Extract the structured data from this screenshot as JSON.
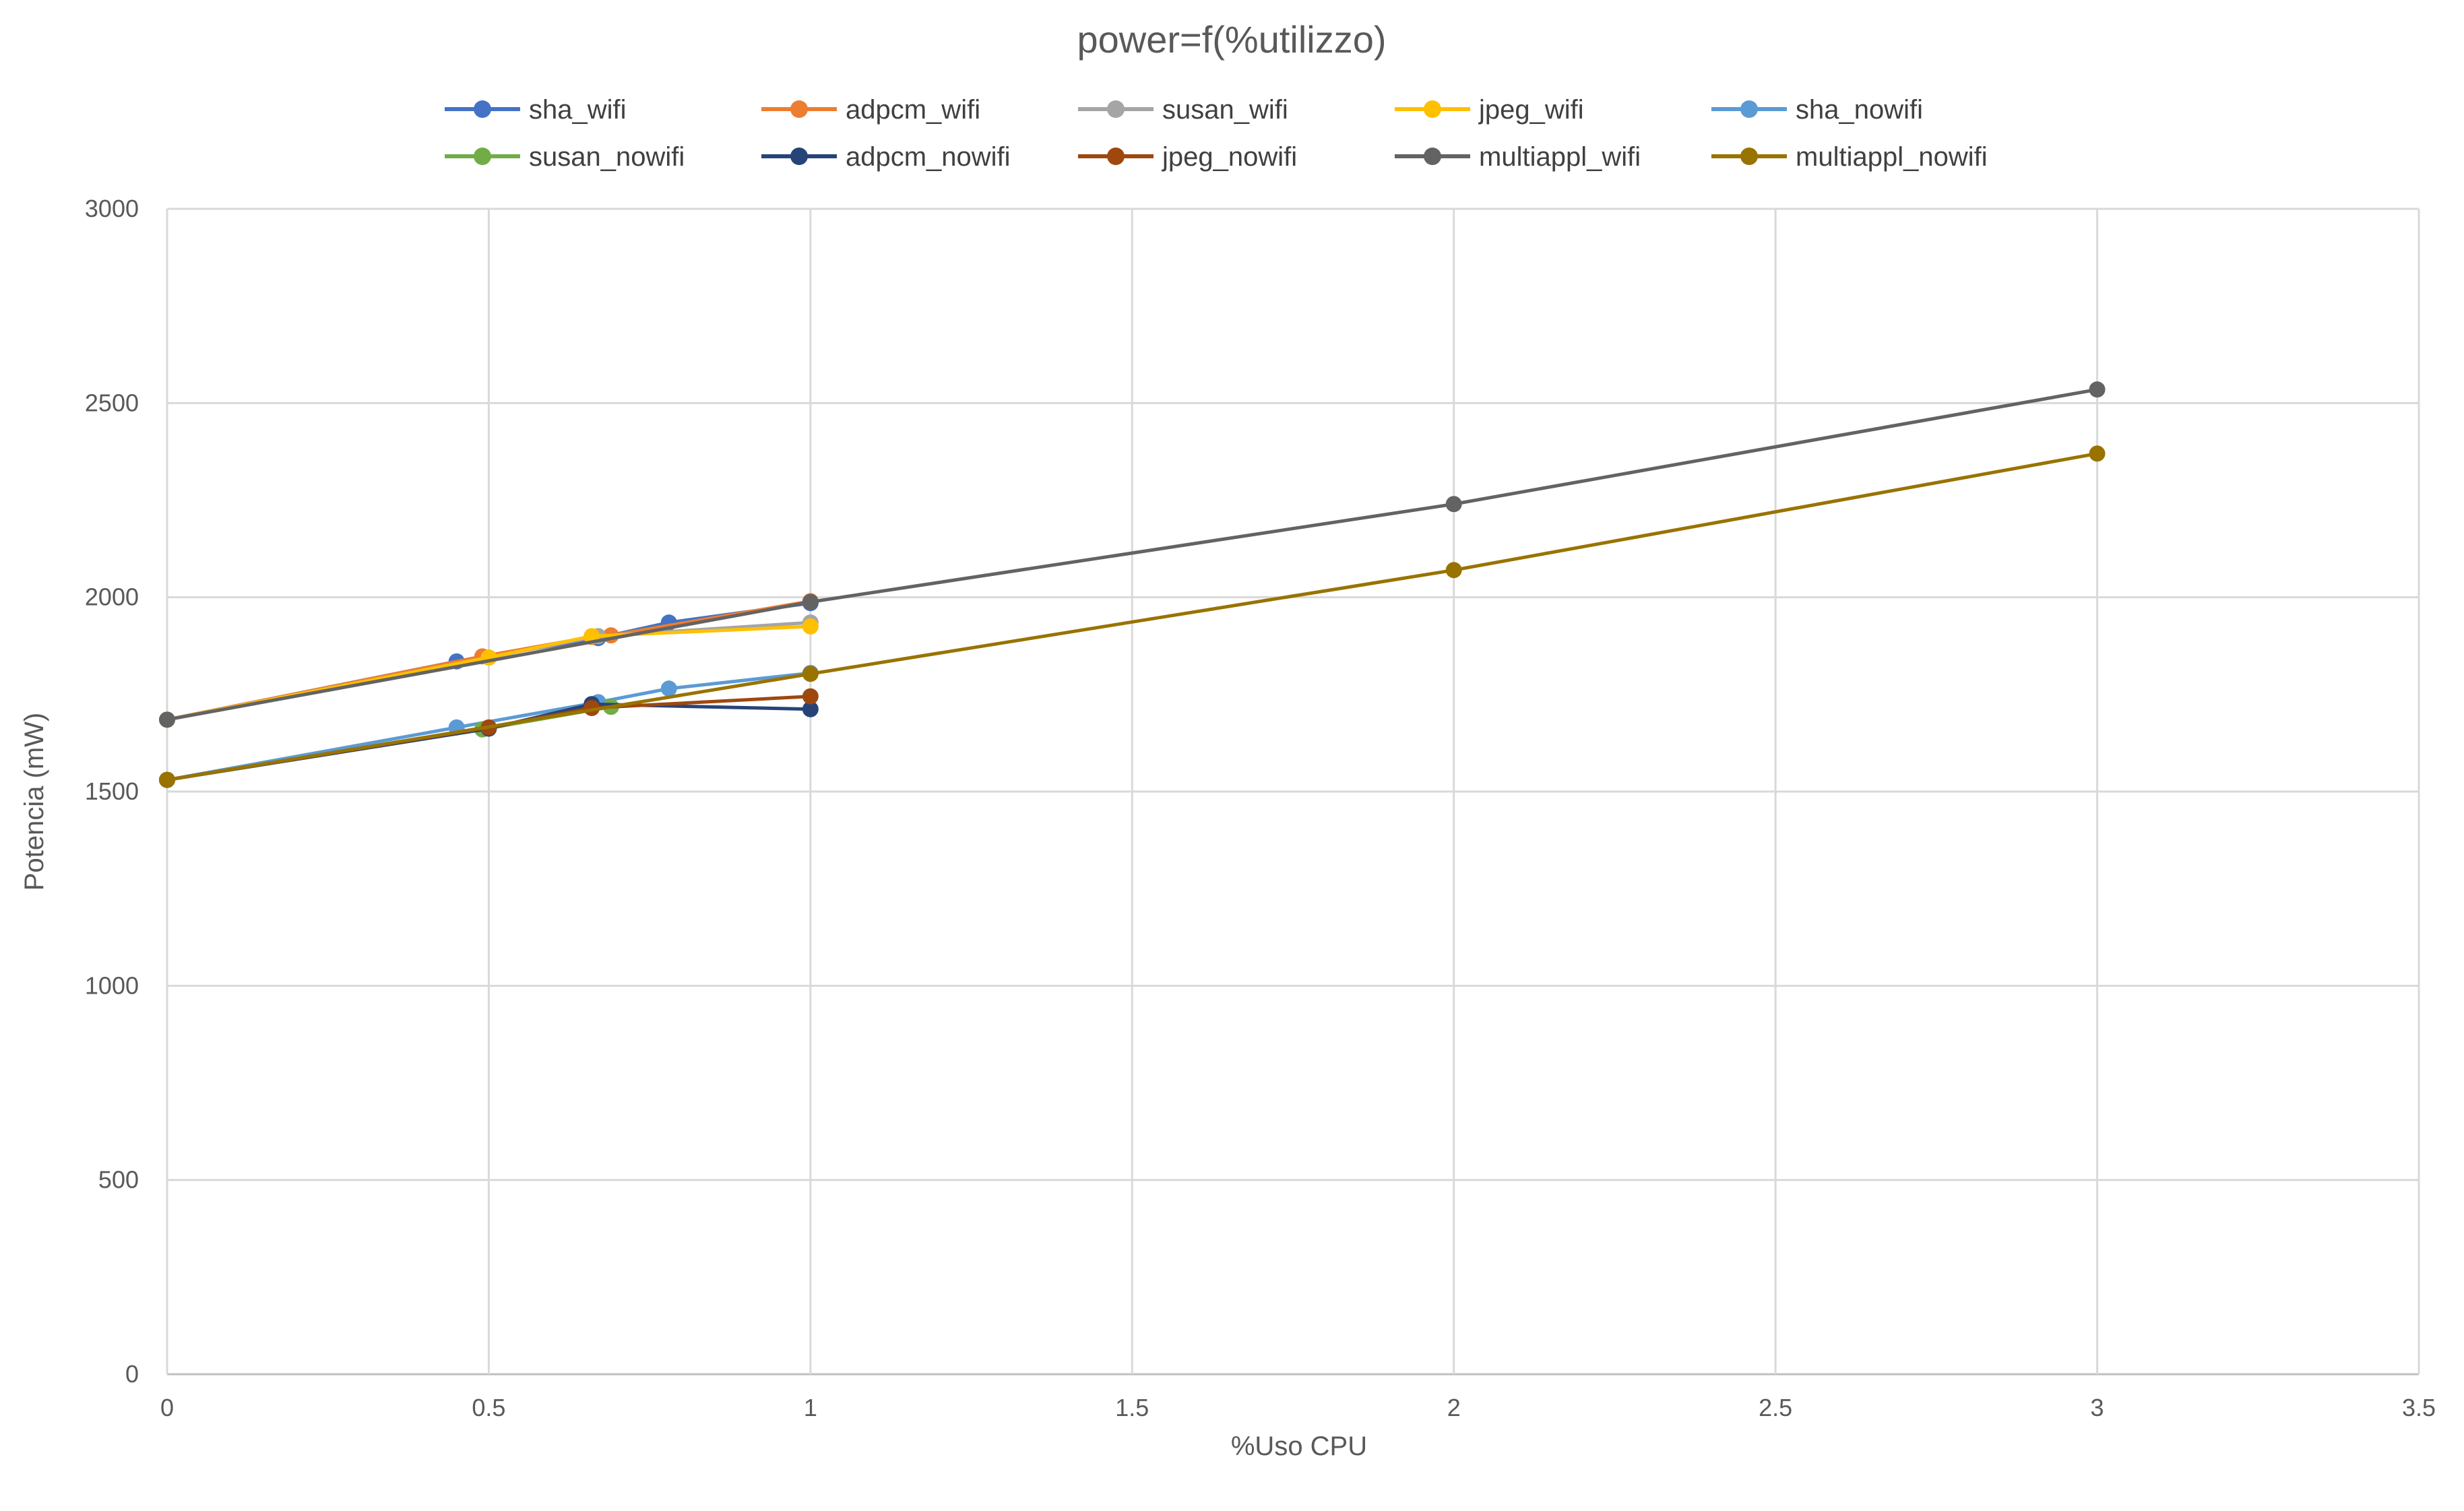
{
  "chart_data": {
    "type": "line",
    "title": "power=f(%utilizzo)",
    "xlabel": "%Uso CPU",
    "ylabel": "Potencia (mW)",
    "xlim": [
      0,
      3.5
    ],
    "ylim": [
      0,
      3000
    ],
    "x_ticks": [
      "0",
      "0.5",
      "1",
      "1.5",
      "2",
      "2.5",
      "3",
      "3.5"
    ],
    "y_ticks": [
      "0",
      "500",
      "1000",
      "1500",
      "2000",
      "2500",
      "3000"
    ],
    "grid": true,
    "legend_position": "top",
    "series": [
      {
        "name": "sha_wifi",
        "color": "#4472C4",
        "points": [
          [
            0,
            1685
          ],
          [
            0.45,
            1835
          ],
          [
            0.67,
            1895
          ],
          [
            0.78,
            1935
          ],
          [
            1.0,
            1985
          ]
        ]
      },
      {
        "name": "adpcm_wifi",
        "color": "#ED7D31",
        "points": [
          [
            0,
            1685
          ],
          [
            0.49,
            1848
          ],
          [
            0.66,
            1898
          ],
          [
            0.69,
            1902
          ],
          [
            1.0,
            1990
          ]
        ]
      },
      {
        "name": "susan_wifi",
        "color": "#A5A5A5",
        "points": [
          [
            0,
            1685
          ],
          [
            0.5,
            1845
          ],
          [
            0.67,
            1900
          ],
          [
            1.0,
            1935
          ]
        ]
      },
      {
        "name": "jpeg_wifi",
        "color": "#FFC000",
        "points": [
          [
            0,
            1685
          ],
          [
            0.5,
            1845
          ],
          [
            0.66,
            1900
          ],
          [
            1.0,
            1925
          ]
        ]
      },
      {
        "name": "sha_nowifi",
        "color": "#5B9BD5",
        "points": [
          [
            0,
            1530
          ],
          [
            0.45,
            1665
          ],
          [
            0.67,
            1730
          ],
          [
            0.78,
            1765
          ],
          [
            1.0,
            1805
          ]
        ]
      },
      {
        "name": "susan_nowifi",
        "color": "#70AD47",
        "points": [
          [
            0,
            1530
          ],
          [
            0.49,
            1660
          ],
          [
            0.69,
            1718
          ]
        ]
      },
      {
        "name": "adpcm_nowifi",
        "color": "#264478",
        "points": [
          [
            0,
            1530
          ],
          [
            0.5,
            1662
          ],
          [
            0.66,
            1725
          ],
          [
            1.0,
            1712
          ]
        ]
      },
      {
        "name": "jpeg_nowifi",
        "color": "#9E480E",
        "points": [
          [
            0,
            1530
          ],
          [
            0.5,
            1665
          ],
          [
            0.66,
            1715
          ],
          [
            1.0,
            1745
          ]
        ]
      },
      {
        "name": "multiappl_wifi",
        "color": "#636363",
        "points": [
          [
            0,
            1685
          ],
          [
            1.0,
            1988
          ],
          [
            2.0,
            2240
          ],
          [
            3.0,
            2535
          ]
        ]
      },
      {
        "name": "multiappl_nowifi",
        "color": "#997300",
        "points": [
          [
            0,
            1530
          ],
          [
            1.0,
            1803
          ],
          [
            2.0,
            2070
          ],
          [
            3.0,
            2370
          ]
        ]
      }
    ]
  }
}
